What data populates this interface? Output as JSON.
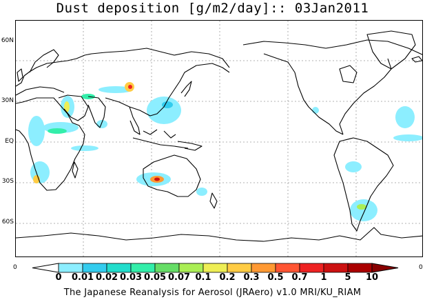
{
  "title": "Dust deposition [g/m2/day]:: 03Jan2011",
  "footer": "The Japanese Reanalysis for Aerosol (JRAero) v1.0 MRI/KU_RIAM",
  "lat_labels": [
    "60N",
    "30N",
    "EQ",
    "30S",
    "60S"
  ],
  "lon_edge_labels": [
    "0",
    "0"
  ],
  "colorbar": {
    "ticks": [
      "0",
      "0.01",
      "0.02",
      "0.03",
      "0.05",
      "0.07",
      "0.1",
      "0.2",
      "0.3",
      "0.5",
      "0.7",
      "1",
      "5",
      "10"
    ],
    "colors": [
      "#ffffff",
      "#8ceeff",
      "#33ccee",
      "#22ddcc",
      "#33eeaa",
      "#66dd66",
      "#aaee55",
      "#eeee55",
      "#ffcc44",
      "#ff9933",
      "#ff5533",
      "#ee2222",
      "#cc1111",
      "#aa0000",
      "#880000"
    ]
  },
  "map_colors": {
    "coast": "#000000",
    "grid": "#999999"
  }
}
